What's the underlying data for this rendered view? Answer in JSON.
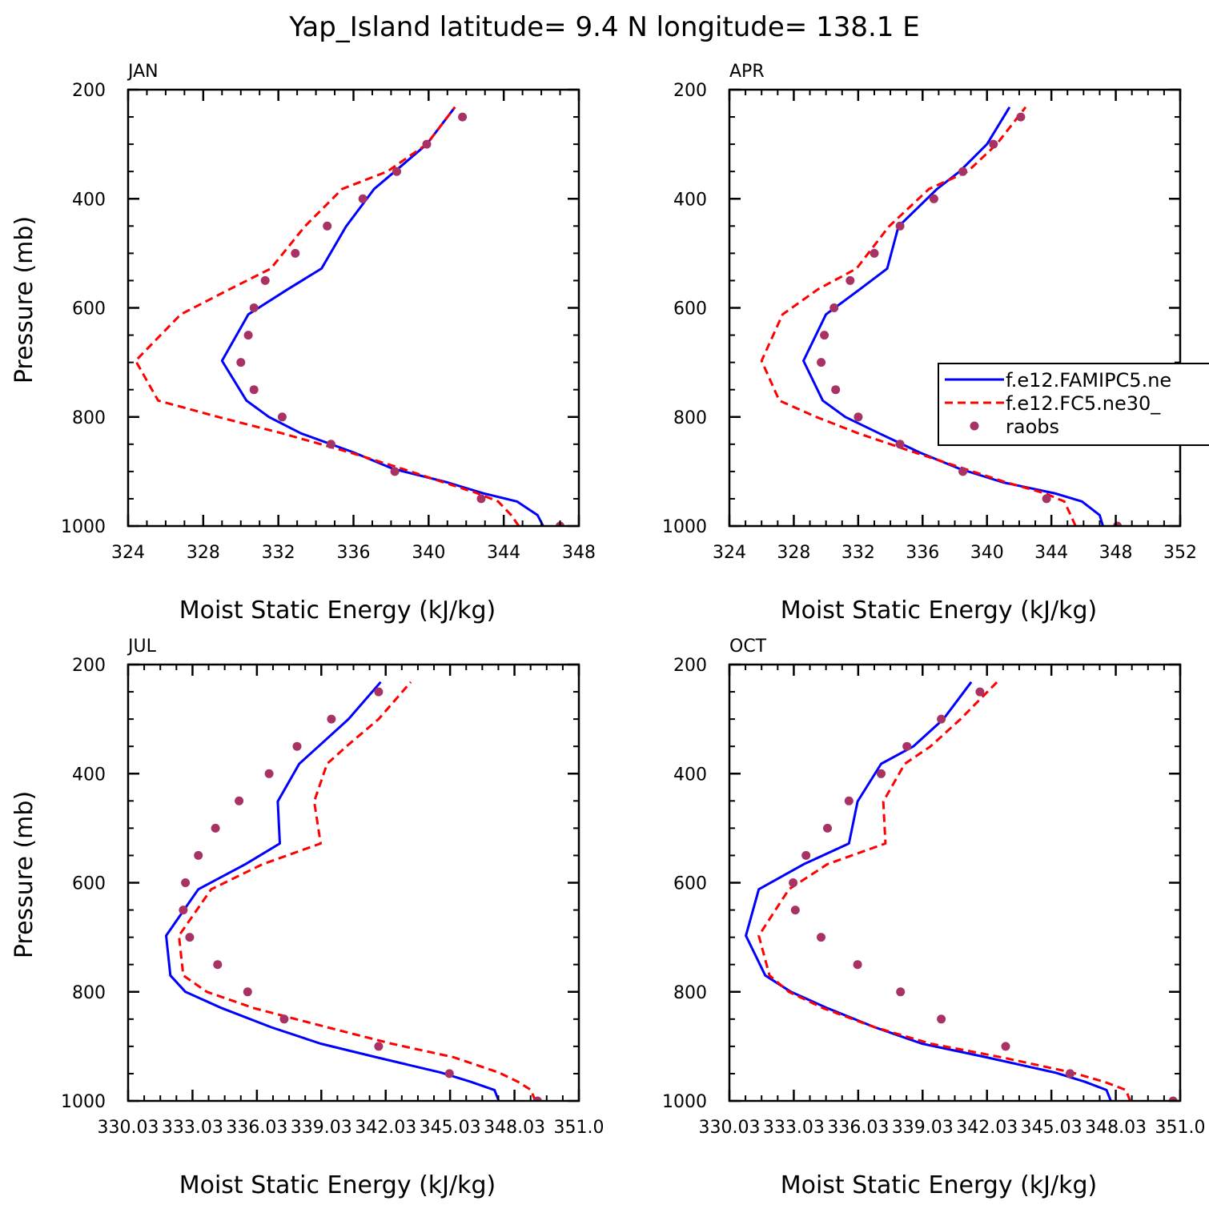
{
  "figure": {
    "title": "Yap_Island  latitude= 9.4 N longitude= 138.1 E",
    "colors": {
      "model1": "#0000ff",
      "model2": "#ff0000",
      "obs": "#a83264",
      "axes": "#000000"
    }
  },
  "legend": {
    "entries": [
      "f.e12.FAMIPC5.ne",
      "f.e12.FC5.ne30_",
      "raobs"
    ],
    "placement": "right of APR panel (clipped at page edge)"
  },
  "chart_data": [
    {
      "type": "line",
      "panel": "JAN",
      "xlabel": "Moist Static Energy (kJ/kg)",
      "ylabel": "Pressure (mb)",
      "xlim": [
        324,
        348
      ],
      "ylim": [
        1000,
        200
      ],
      "xticks": [
        "324",
        "328",
        "332",
        "336",
        "340",
        "344",
        "348"
      ],
      "yticks": [
        "200",
        "400",
        "600",
        "800",
        "1000"
      ],
      "series": [
        {
          "name": "f.e12.FAMIPC5.ne",
          "style": "solid",
          "x": [
            346.1,
            345.8,
            344.7,
            342.9,
            341.0,
            338.1,
            336.0,
            333.2,
            331.5,
            330.3,
            329.0,
            330.4,
            332.5,
            334.3,
            335.6,
            337.1,
            338.2,
            339.9,
            341.4
          ],
          "y": [
            1000,
            980,
            955,
            940,
            920,
            895,
            865,
            830,
            800,
            770,
            697,
            612,
            566,
            528,
            451,
            382,
            350,
            300,
            232
          ]
        },
        {
          "name": "f.e12.FC5.ne30_",
          "style": "dashed",
          "x": [
            344.8,
            344.4,
            343.7,
            342.6,
            340.8,
            338.6,
            335.8,
            332.2,
            328.8,
            325.6,
            324.4,
            326.8,
            329.4,
            331.6,
            333.4,
            335.4,
            337.8,
            339.9,
            341.4
          ],
          "y": [
            1000,
            980,
            955,
            940,
            920,
            895,
            865,
            830,
            800,
            770,
            697,
            612,
            566,
            528,
            451,
            382,
            350,
            300,
            232
          ]
        },
        {
          "name": "raobs",
          "style": "markers",
          "x": [
            347.0,
            342.8,
            338.2,
            334.8,
            332.2,
            330.7,
            330.0,
            330.4,
            330.7,
            331.3,
            332.9,
            334.6,
            336.5,
            338.3,
            339.9,
            341.8
          ],
          "y": [
            1000,
            950,
            900,
            850,
            800,
            750,
            700,
            650,
            600,
            550,
            500,
            450,
            400,
            350,
            300,
            250
          ]
        }
      ]
    },
    {
      "type": "line",
      "panel": "APR",
      "xlabel": "Moist Static Energy (kJ/kg)",
      "ylabel": "",
      "xlim": [
        324,
        352
      ],
      "ylim": [
        1000,
        200
      ],
      "xticks": [
        "324",
        "328",
        "332",
        "336",
        "340",
        "344",
        "348",
        "352"
      ],
      "yticks": [
        "200",
        "400",
        "600",
        "800",
        "1000"
      ],
      "series": [
        {
          "name": "f.e12.FAMIPC5.ne",
          "style": "solid",
          "x": [
            347.2,
            347.0,
            345.9,
            344.2,
            341.0,
            338.3,
            335.8,
            333.3,
            331.2,
            329.8,
            328.6,
            330.0,
            332.1,
            333.8,
            334.5,
            336.9,
            338.3,
            340.0,
            341.4
          ],
          "y": [
            1000,
            980,
            955,
            940,
            920,
            895,
            865,
            830,
            800,
            770,
            697,
            612,
            566,
            528,
            451,
            382,
            350,
            300,
            232
          ]
        },
        {
          "name": "f.e12.FC5.ne30_",
          "style": "dashed",
          "x": [
            345.5,
            345.2,
            344.8,
            343.6,
            341.2,
            338.6,
            335.5,
            332.0,
            329.4,
            327.1,
            326.0,
            327.3,
            329.5,
            331.9,
            333.9,
            336.4,
            338.8,
            340.6,
            342.4
          ],
          "y": [
            1000,
            980,
            955,
            940,
            920,
            895,
            865,
            830,
            800,
            770,
            697,
            612,
            566,
            528,
            451,
            382,
            350,
            300,
            232
          ]
        },
        {
          "name": "raobs",
          "style": "markers",
          "x": [
            348.1,
            343.7,
            338.5,
            334.6,
            332.0,
            330.6,
            329.7,
            329.9,
            330.5,
            331.5,
            333.0,
            334.6,
            336.7,
            338.5,
            340.4,
            342.1
          ],
          "y": [
            1000,
            950,
            900,
            850,
            800,
            750,
            700,
            650,
            600,
            550,
            500,
            450,
            400,
            350,
            300,
            250
          ]
        }
      ]
    },
    {
      "type": "line",
      "panel": "JUL",
      "xlabel": "Moist Static Energy (kJ/kg)",
      "ylabel": "Pressure (mb)",
      "xlim": [
        330.03,
        351.03
      ],
      "ylim": [
        1000,
        200
      ],
      "xticks": [
        "330.03",
        "333.03",
        "336.03",
        "339.03",
        "342.03",
        "345.03",
        "348.03",
        "351.0"
      ],
      "yticks": [
        "200",
        "400",
        "600",
        "800",
        "1000"
      ],
      "series": [
        {
          "name": "f.e12.FAMIPC5.ne",
          "style": "solid",
          "x": [
            347.3,
            347.1,
            346.0,
            344.6,
            341.6,
            339.0,
            336.7,
            334.4,
            332.7,
            332.0,
            331.8,
            333.3,
            335.5,
            337.1,
            337.0,
            338.0,
            338.9,
            340.3,
            341.8
          ],
          "y": [
            1000,
            980,
            965,
            948,
            920,
            895,
            865,
            830,
            800,
            770,
            697,
            612,
            566,
            528,
            451,
            382,
            350,
            300,
            232
          ]
        },
        {
          "name": "f.e12.FC5.ne30_",
          "style": "dashed",
          "x": [
            349.0,
            348.8,
            348.2,
            347.3,
            345.2,
            342.3,
            339.3,
            335.9,
            333.7,
            332.6,
            332.4,
            333.9,
            336.3,
            339.0,
            338.7,
            339.3,
            340.2,
            341.7,
            343.2
          ],
          "y": [
            1000,
            980,
            965,
            948,
            920,
            895,
            865,
            830,
            800,
            770,
            697,
            612,
            566,
            528,
            451,
            382,
            350,
            300,
            232
          ]
        },
        {
          "name": "raobs",
          "style": "markers",
          "x": [
            349.1,
            345.0,
            341.7,
            337.3,
            335.6,
            334.2,
            332.9,
            332.6,
            332.7,
            333.3,
            334.1,
            335.2,
            336.6,
            337.9,
            339.5,
            341.7
          ],
          "y": [
            1000,
            950,
            900,
            850,
            800,
            750,
            700,
            650,
            600,
            550,
            500,
            450,
            400,
            350,
            300,
            250
          ]
        }
      ]
    },
    {
      "type": "line",
      "panel": "OCT",
      "xlabel": "Moist Static Energy (kJ/kg)",
      "ylabel": "",
      "xlim": [
        330.03,
        351.03
      ],
      "ylim": [
        1000,
        200
      ],
      "xticks": [
        "330.03",
        "333.03",
        "336.03",
        "339.03",
        "342.03",
        "345.03",
        "348.03",
        "351.0"
      ],
      "yticks": [
        "200",
        "400",
        "600",
        "800",
        "1000"
      ],
      "series": [
        {
          "name": "f.e12.FAMIPC5.ne",
          "style": "solid",
          "x": [
            347.8,
            347.6,
            346.6,
            345.2,
            342.0,
            339.0,
            336.8,
            334.6,
            332.9,
            331.7,
            330.8,
            331.4,
            333.5,
            335.6,
            336.0,
            337.1,
            338.6,
            340.0,
            341.3
          ],
          "y": [
            1000,
            980,
            965,
            948,
            920,
            895,
            865,
            830,
            800,
            770,
            697,
            612,
            566,
            528,
            451,
            382,
            350,
            300,
            232
          ]
        },
        {
          "name": "f.e12.FC5.ne30_",
          "style": "dashed",
          "x": [
            348.7,
            348.5,
            347.5,
            346.0,
            342.7,
            339.4,
            336.8,
            334.4,
            332.8,
            331.9,
            331.4,
            332.8,
            334.6,
            337.3,
            337.2,
            338.2,
            339.4,
            340.8,
            342.5
          ],
          "y": [
            1000,
            980,
            965,
            948,
            920,
            895,
            865,
            830,
            800,
            770,
            697,
            612,
            566,
            528,
            451,
            382,
            350,
            300,
            232
          ]
        },
        {
          "name": "raobs",
          "style": "markers",
          "x": [
            350.7,
            345.9,
            342.9,
            339.9,
            338.0,
            336.0,
            334.3,
            333.1,
            333.0,
            333.6,
            334.6,
            335.6,
            337.1,
            338.3,
            339.9,
            341.7
          ],
          "y": [
            1000,
            950,
            900,
            850,
            800,
            750,
            700,
            650,
            600,
            550,
            500,
            450,
            400,
            350,
            300,
            250
          ]
        }
      ]
    }
  ]
}
